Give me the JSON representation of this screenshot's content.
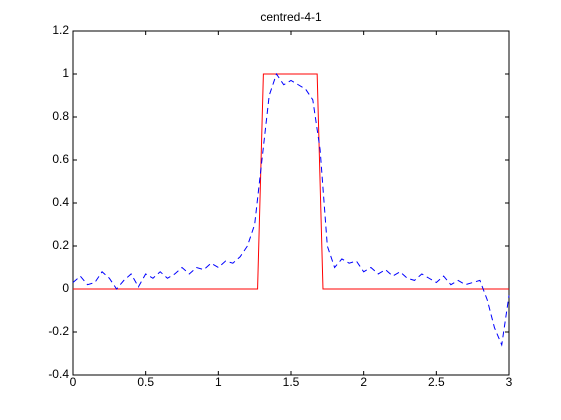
{
  "chart_data": {
    "type": "line",
    "title": "centred-4-1",
    "xlim": [
      0,
      3
    ],
    "xticks": [
      0,
      0.5,
      1,
      1.5,
      2,
      2.5,
      3
    ],
    "ylim": [
      -0.4,
      1.2
    ],
    "yticks": [
      -0.4,
      -0.2,
      0,
      0.2,
      0.4,
      0.6,
      0.8,
      1,
      1.2
    ],
    "series": [
      {
        "color": "#ff0000",
        "dash": false,
        "x": [
          0,
          1.27,
          1.31,
          1.68,
          1.72,
          3
        ],
        "values": [
          0,
          0,
          1,
          1,
          0,
          0
        ]
      },
      {
        "color": "#0000ff",
        "dash": true,
        "x": [
          0,
          0.05,
          0.1,
          0.15,
          0.2,
          0.25,
          0.3,
          0.35,
          0.4,
          0.45,
          0.5,
          0.55,
          0.6,
          0.65,
          0.7,
          0.75,
          0.8,
          0.85,
          0.9,
          0.95,
          1,
          1.05,
          1.1,
          1.15,
          1.2,
          1.25,
          1.3,
          1.35,
          1.4,
          1.45,
          1.5,
          1.55,
          1.6,
          1.65,
          1.7,
          1.75,
          1.8,
          1.85,
          1.9,
          1.95,
          2,
          2.05,
          2.1,
          2.15,
          2.2,
          2.25,
          2.3,
          2.35,
          2.4,
          2.45,
          2.5,
          2.55,
          2.6,
          2.65,
          2.7,
          2.75,
          2.8,
          2.85,
          2.9,
          2.95,
          3
        ],
        "values": [
          0.03,
          0.06,
          0.02,
          0.03,
          0.08,
          0.05,
          0.0,
          0.04,
          0.07,
          0.01,
          0.07,
          0.05,
          0.08,
          0.05,
          0.07,
          0.1,
          0.07,
          0.1,
          0.09,
          0.12,
          0.1,
          0.13,
          0.12,
          0.15,
          0.2,
          0.3,
          0.6,
          0.9,
          1.0,
          0.95,
          0.97,
          0.95,
          0.93,
          0.88,
          0.65,
          0.2,
          0.1,
          0.14,
          0.12,
          0.13,
          0.08,
          0.1,
          0.07,
          0.09,
          0.06,
          0.08,
          0.05,
          0.04,
          0.07,
          0.05,
          0.03,
          0.06,
          0.02,
          0.04,
          0.02,
          0.03,
          0.04,
          -0.05,
          -0.18,
          -0.26,
          -0.03
        ]
      }
    ]
  }
}
